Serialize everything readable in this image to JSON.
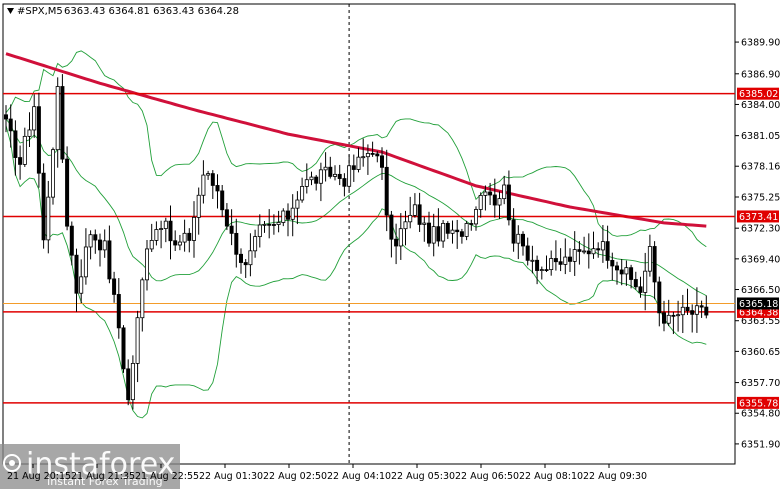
{
  "symbol_header": {
    "symbol": "#SPX,M5",
    "ohlc": "6363.43 6364.81 6363.43 6364.28"
  },
  "watermark": {
    "brand": "instaforex",
    "tagline": "Instant Forex Trading"
  },
  "colors": {
    "candle": "#000000",
    "bollinger": "#22a03a",
    "moving_average": "#d0103a",
    "level_line": "#e00000",
    "level_tag_bg": "#e00000",
    "price_tag_bg": "#000000",
    "current_line": "#f39c2a"
  },
  "chart_data": {
    "type": "candlestick",
    "symbol": "#SPX",
    "timeframe": "M5",
    "ylim": [
      6350.0,
      6393.5
    ],
    "y_ticks": [
      "6389.90",
      "6386.90",
      "6384.00",
      "6381.05",
      "6378.16",
      "6375.25",
      "6372.30",
      "6369.40",
      "6366.50",
      "6363.55",
      "6360.65",
      "6357.70",
      "6354.80",
      "6351.90"
    ],
    "x_ticks": [
      "21 Aug 20:15",
      "21 Aug 21:35",
      "21 Aug 22:55",
      "22 Aug 01:30",
      "22 Aug 02:50",
      "22 Aug 04:10",
      "22 Aug 05:30",
      "22 Aug 06:50",
      "22 Aug 08:10",
      "22 Aug 09:30"
    ],
    "x_tick_positions": [
      2,
      18,
      34,
      50,
      66,
      82,
      98,
      114,
      130,
      146
    ],
    "bar_count": 150,
    "session_break_index": 73,
    "horizontal_levels": [
      {
        "label": "6385.02",
        "value": 6385.02
      },
      {
        "label": "6373.41",
        "value": 6373.41
      },
      {
        "label": "6364.38",
        "value": 6364.38
      },
      {
        "label": "6355.78",
        "value": 6355.78
      }
    ],
    "current_price": {
      "label": "6365.18",
      "value": 6365.18
    },
    "close_anchors": [
      [
        0,
        6382.0
      ],
      [
        3,
        6378.5
      ],
      [
        6,
        6384.0
      ],
      [
        8,
        6371.0
      ],
      [
        11,
        6385.0
      ],
      [
        13,
        6373.0
      ],
      [
        15,
        6366.5
      ],
      [
        18,
        6372.0
      ],
      [
        21,
        6370.5
      ],
      [
        24,
        6363.0
      ],
      [
        26,
        6356.0
      ],
      [
        28,
        6363.5
      ],
      [
        30,
        6371.0
      ],
      [
        33,
        6373.0
      ],
      [
        36,
        6370.5
      ],
      [
        39,
        6371.5
      ],
      [
        42,
        6377.5
      ],
      [
        45,
        6376.0
      ],
      [
        48,
        6371.5
      ],
      [
        51,
        6368.5
      ],
      [
        54,
        6372.0
      ],
      [
        57,
        6372.5
      ],
      [
        60,
        6373.5
      ],
      [
        63,
        6376.5
      ],
      [
        66,
        6377.0
      ],
      [
        69,
        6377.5
      ],
      [
        72,
        6377.0
      ],
      [
        75,
        6378.5
      ],
      [
        78,
        6380.0
      ],
      [
        80,
        6377.5
      ],
      [
        82,
        6370.5
      ],
      [
        84,
        6372.0
      ],
      [
        87,
        6374.0
      ],
      [
        90,
        6371.5
      ],
      [
        93,
        6372.0
      ],
      [
        96,
        6371.5
      ],
      [
        99,
        6373.5
      ],
      [
        102,
        6376.5
      ],
      [
        104,
        6375.0
      ],
      [
        106,
        6376.0
      ],
      [
        108,
        6371.5
      ],
      [
        111,
        6370.0
      ],
      [
        114,
        6368.5
      ],
      [
        117,
        6368.8
      ],
      [
        120,
        6369.5
      ],
      [
        123,
        6370.0
      ],
      [
        126,
        6371.0
      ],
      [
        129,
        6369.5
      ],
      [
        132,
        6367.8
      ],
      [
        135,
        6366.5
      ],
      [
        137,
        6370.0
      ],
      [
        139,
        6364.5
      ],
      [
        141,
        6363.5
      ],
      [
        143,
        6364.2
      ],
      [
        145,
        6364.3
      ],
      [
        149,
        6364.3
      ]
    ],
    "moving_average_anchors": [
      [
        0,
        6388.8
      ],
      [
        20,
        6386.0
      ],
      [
        40,
        6383.5
      ],
      [
        60,
        6381.2
      ],
      [
        80,
        6379.5
      ],
      [
        100,
        6376.3
      ],
      [
        120,
        6374.3
      ],
      [
        140,
        6372.8
      ],
      [
        149,
        6372.5
      ]
    ]
  }
}
